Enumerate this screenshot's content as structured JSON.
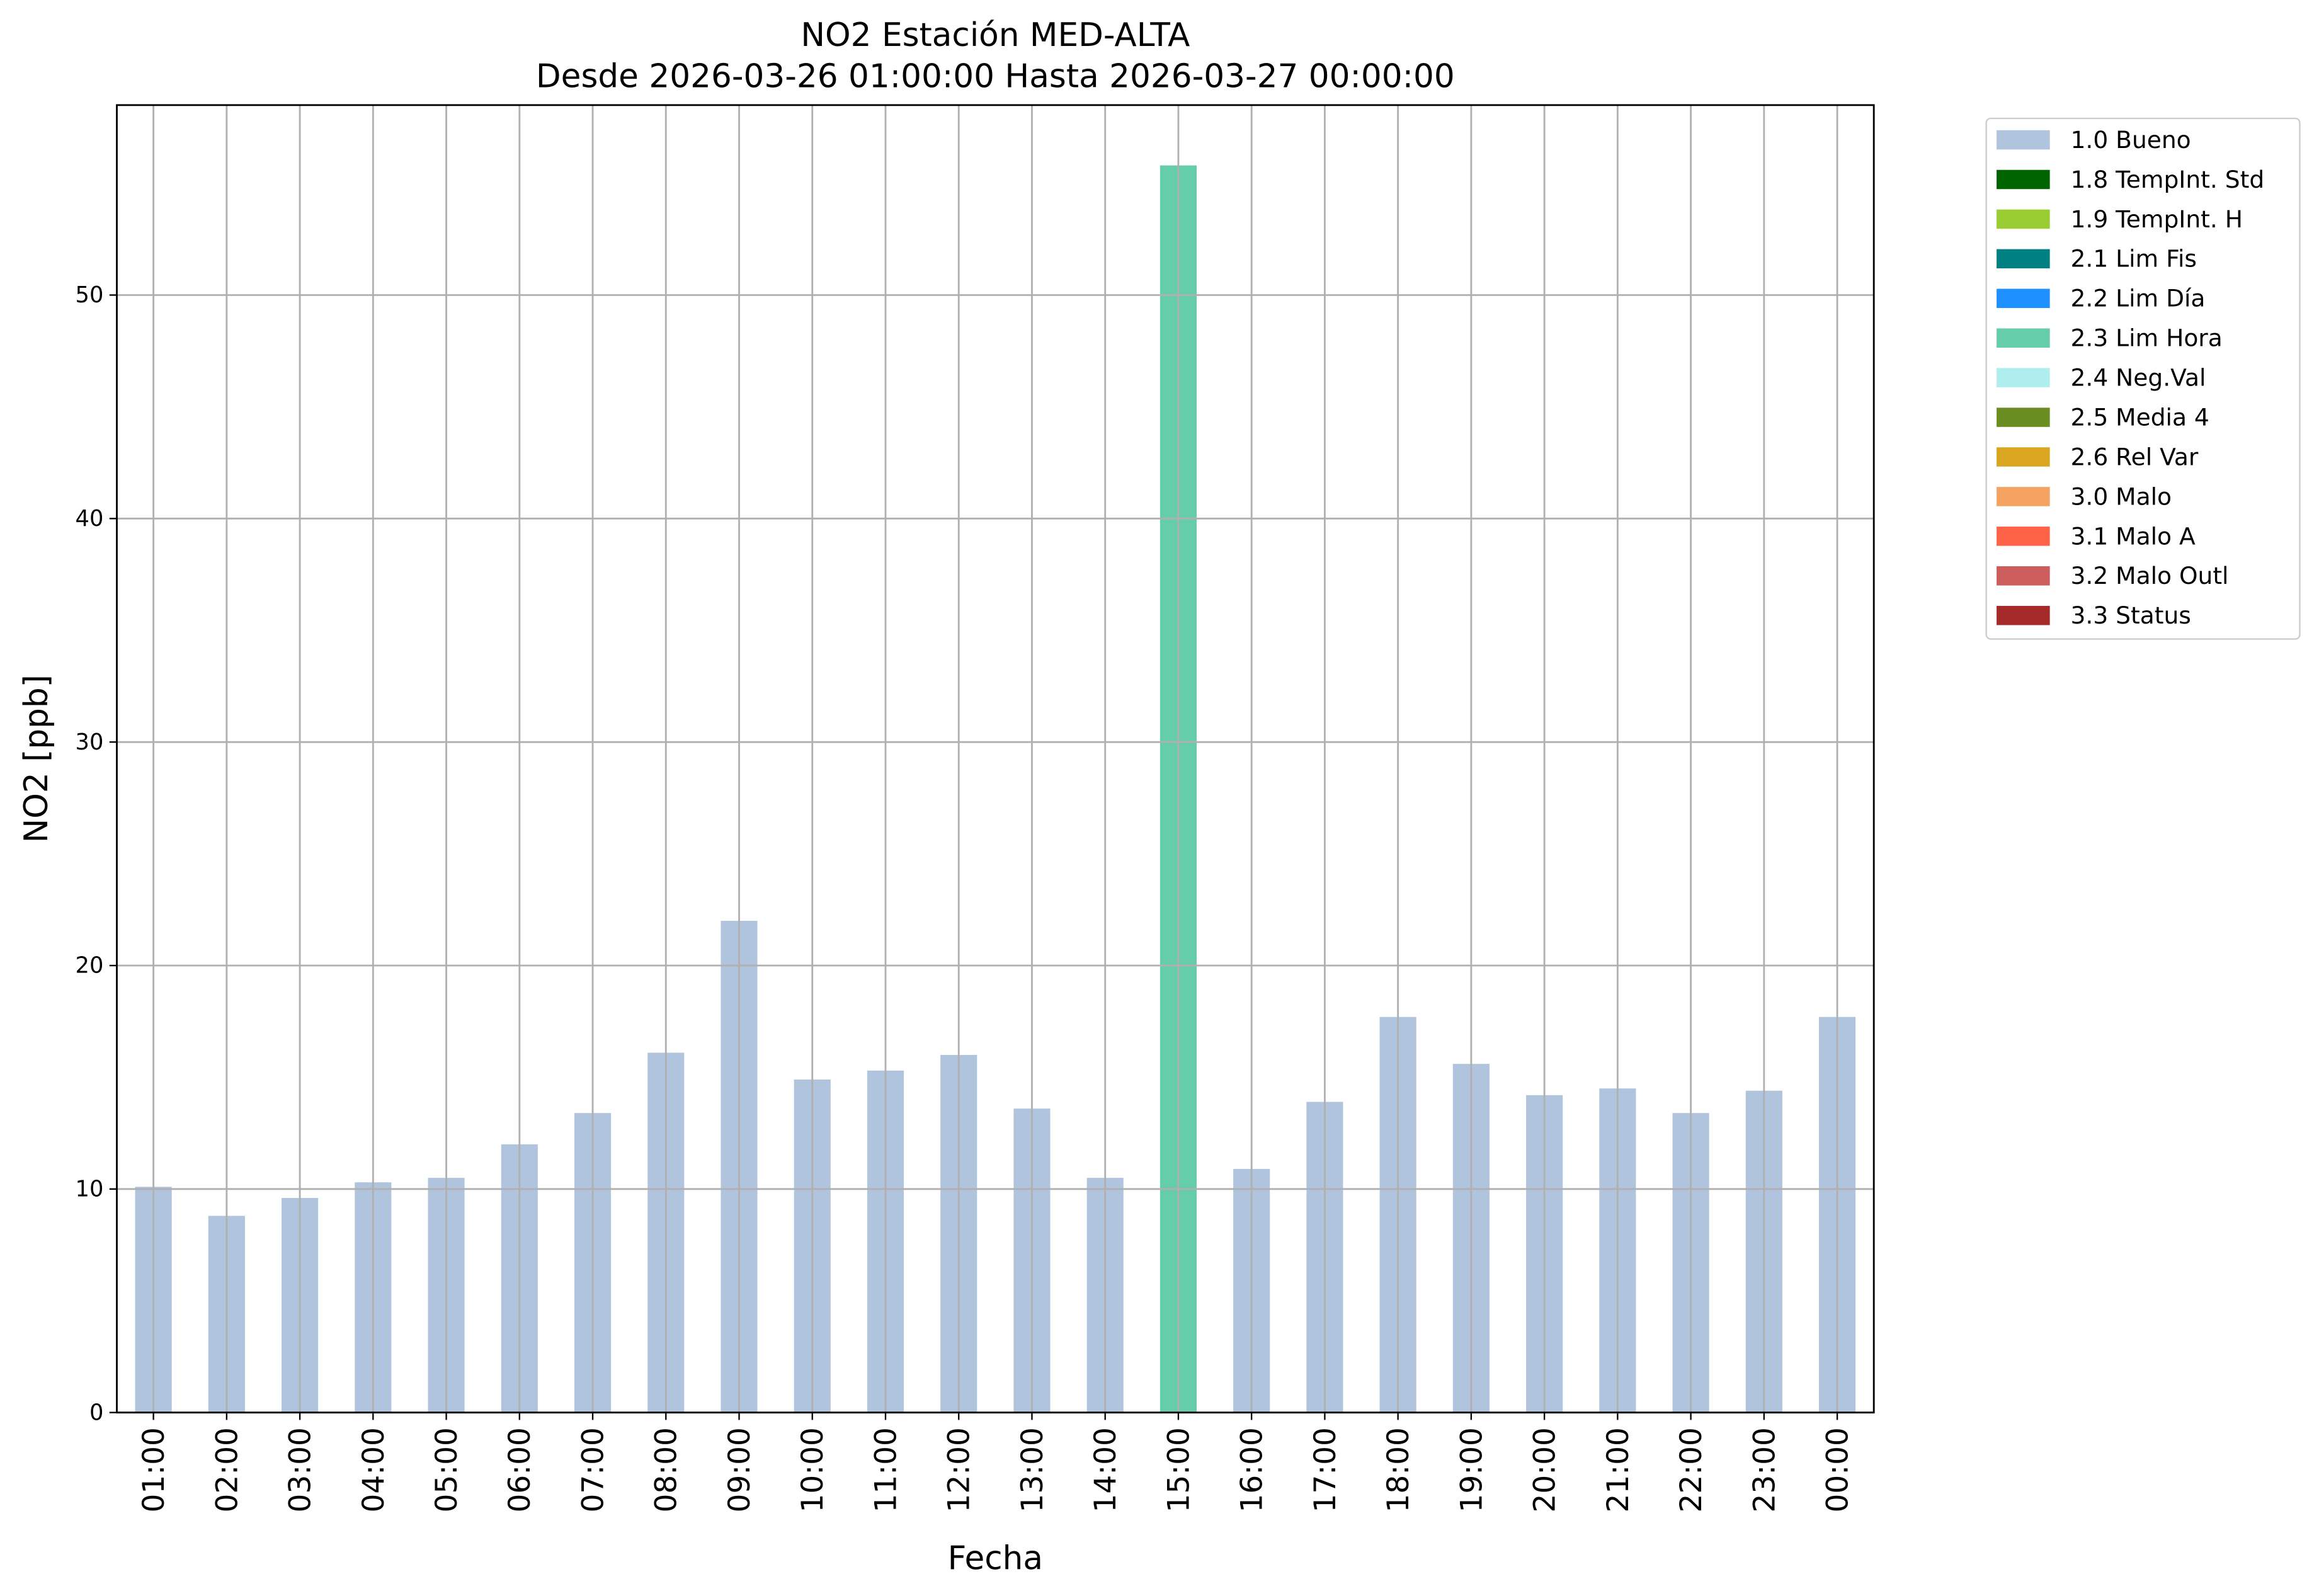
{
  "chart_data": {
    "type": "stacked_bar",
    "title": "NO2 Estación MED-ALTA",
    "subtitle": "Desde 2026-03-26 01:00:00 Hasta 2026-03-27 00:00:00",
    "x_label": "Fecha",
    "y_label": "NO2 [ppb]",
    "categories": [
      "01:00",
      "02:00",
      "03:00",
      "04:00",
      "05:00",
      "06:00",
      "07:00",
      "08:00",
      "09:00",
      "10:00",
      "11:00",
      "12:00",
      "13:00",
      "14:00",
      "15:00",
      "16:00",
      "17:00",
      "18:00",
      "19:00",
      "20:00",
      "21:00",
      "22:00",
      "23:00",
      "00:00"
    ],
    "series": [
      {
        "name": "1.0 Bueno",
        "color": "#b0c4de",
        "values": [
          10.1,
          8.8,
          9.6,
          10.3,
          10.5,
          12.0,
          13.4,
          16.1,
          22.0,
          14.9,
          15.3,
          16.0,
          13.6,
          10.5,
          null,
          10.9,
          13.9,
          17.7,
          15.6,
          14.2,
          14.5,
          13.4,
          14.4,
          17.7
        ]
      },
      {
        "name": "1.8 TempInt. Std",
        "color": "#006400",
        "values": [
          null,
          null,
          null,
          null,
          null,
          null,
          null,
          null,
          null,
          null,
          null,
          null,
          null,
          null,
          null,
          null,
          null,
          null,
          null,
          null,
          null,
          null,
          null,
          null
        ]
      },
      {
        "name": "1.9 TempInt. H",
        "color": "#9acd32",
        "values": [
          null,
          null,
          null,
          null,
          null,
          null,
          null,
          null,
          null,
          null,
          null,
          null,
          null,
          null,
          null,
          null,
          null,
          null,
          null,
          null,
          null,
          null,
          null,
          null
        ]
      },
      {
        "name": "2.1 Lim Fis",
        "color": "#008080",
        "values": [
          null,
          null,
          null,
          null,
          null,
          null,
          null,
          null,
          null,
          null,
          null,
          null,
          null,
          null,
          null,
          null,
          null,
          null,
          null,
          null,
          null,
          null,
          null,
          null
        ]
      },
      {
        "name": "2.2 Lim Día",
        "color": "#1e90ff",
        "values": [
          null,
          null,
          null,
          null,
          null,
          null,
          null,
          null,
          null,
          null,
          null,
          null,
          null,
          null,
          null,
          null,
          null,
          null,
          null,
          null,
          null,
          null,
          null,
          null
        ]
      },
      {
        "name": "2.3 Lim Hora",
        "color": "#66cdaa",
        "values": [
          null,
          null,
          null,
          null,
          null,
          null,
          null,
          null,
          null,
          null,
          null,
          null,
          null,
          null,
          55.8,
          null,
          null,
          null,
          null,
          null,
          null,
          null,
          null,
          null
        ]
      },
      {
        "name": "2.4 Neg.Val",
        "color": "#afeeee",
        "values": [
          null,
          null,
          null,
          null,
          null,
          null,
          null,
          null,
          null,
          null,
          null,
          null,
          null,
          null,
          null,
          null,
          null,
          null,
          null,
          null,
          null,
          null,
          null,
          null
        ]
      },
      {
        "name": "2.5 Media 4",
        "color": "#6b8e23",
        "values": [
          null,
          null,
          null,
          null,
          null,
          null,
          null,
          null,
          null,
          null,
          null,
          null,
          null,
          null,
          null,
          null,
          null,
          null,
          null,
          null,
          null,
          null,
          null,
          null
        ]
      },
      {
        "name": "2.6 Rel Var",
        "color": "#daa520",
        "values": [
          null,
          null,
          null,
          null,
          null,
          null,
          null,
          null,
          null,
          null,
          null,
          null,
          null,
          null,
          null,
          null,
          null,
          null,
          null,
          null,
          null,
          null,
          null,
          null
        ]
      },
      {
        "name": "3.0 Malo",
        "color": "#f4a460",
        "values": [
          null,
          null,
          null,
          null,
          null,
          null,
          null,
          null,
          null,
          null,
          null,
          null,
          null,
          null,
          null,
          null,
          null,
          null,
          null,
          null,
          null,
          null,
          null,
          null
        ]
      },
      {
        "name": "3.1 Malo A",
        "color": "#ff6347",
        "values": [
          null,
          null,
          null,
          null,
          null,
          null,
          null,
          null,
          null,
          null,
          null,
          null,
          null,
          null,
          null,
          null,
          null,
          null,
          null,
          null,
          null,
          null,
          null,
          null
        ]
      },
      {
        "name": "3.2 Malo Outl",
        "color": "#cd5c5c",
        "values": [
          null,
          null,
          null,
          null,
          null,
          null,
          null,
          null,
          null,
          null,
          null,
          null,
          null,
          null,
          null,
          null,
          null,
          null,
          null,
          null,
          null,
          null,
          null,
          null
        ]
      },
      {
        "name": "3.3 Status",
        "color": "#a52a2a",
        "values": [
          null,
          null,
          null,
          null,
          null,
          null,
          null,
          null,
          null,
          null,
          null,
          null,
          null,
          null,
          null,
          null,
          null,
          null,
          null,
          null,
          null,
          null,
          null,
          null
        ]
      }
    ],
    "ylim": [
      0,
      58.5
    ],
    "yticks": [
      0,
      10,
      20,
      30,
      40,
      50
    ],
    "grid": true,
    "legend": "outside-right"
  }
}
